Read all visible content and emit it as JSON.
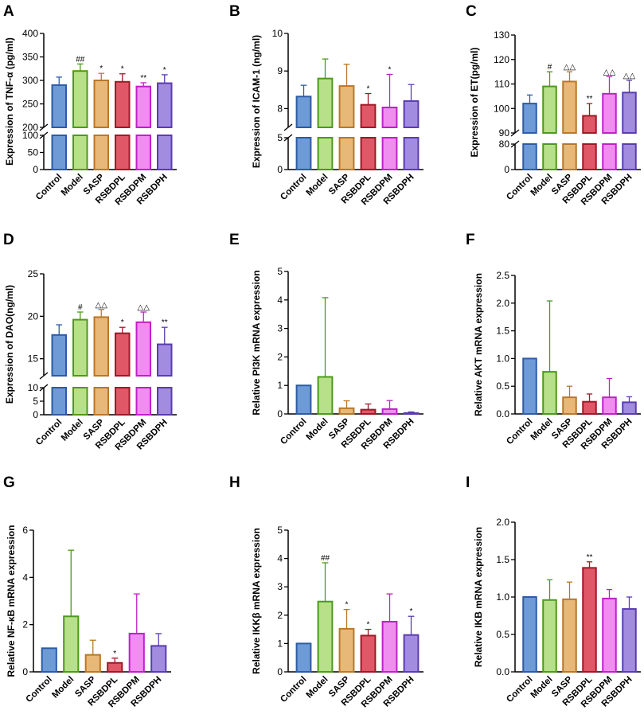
{
  "chart_data": [
    {
      "id": "A",
      "type": "bar",
      "ylabel": "Expression of TNF-α (pg/ml)",
      "categories": [
        "Control",
        "Model",
        "SASP",
        "RSBDPL",
        "RSBDPM",
        "RSBDPH"
      ],
      "values": [
        290,
        320,
        300,
        297,
        287,
        294
      ],
      "errors": [
        17,
        15,
        15,
        17,
        8,
        18
      ],
      "annotations": [
        "",
        "##",
        "*",
        "*",
        "**",
        "*"
      ],
      "axis_break": true,
      "lower_ticks": [
        0,
        50,
        100
      ],
      "lower_range": [
        0,
        100
      ],
      "upper_ticks": [
        200,
        250,
        300,
        350,
        400
      ],
      "upper_range": [
        200,
        400
      ]
    },
    {
      "id": "B",
      "type": "bar",
      "ylabel": "Expression of ICAM-1 (ng/ml)",
      "categories": [
        "Control",
        "Model",
        "SASP",
        "RSBDPL",
        "RSBDPM",
        "RSBDPH"
      ],
      "values": [
        8.32,
        8.8,
        8.6,
        8.1,
        8.03,
        8.2
      ],
      "errors": [
        0.3,
        0.52,
        0.58,
        0.3,
        0.88,
        0.44
      ],
      "annotations": [
        "",
        "",
        "",
        "*",
        "*",
        ""
      ],
      "axis_break": true,
      "lower_ticks": [
        0,
        5
      ],
      "lower_range": [
        0,
        5
      ],
      "upper_ticks": [
        8,
        9,
        10
      ],
      "upper_range": [
        7.5,
        10
      ]
    },
    {
      "id": "C",
      "type": "bar",
      "ylabel": "Expression of ET(pg/ml)",
      "categories": [
        "Control",
        "Model",
        "SASP",
        "RSBDPL",
        "RSBDPM",
        "RSBDPH"
      ],
      "values": [
        102,
        109,
        111,
        97,
        106,
        106.5
      ],
      "errors": [
        3.5,
        6,
        4,
        5,
        7,
        5
      ],
      "annotations": [
        "",
        "#",
        "△△",
        "**",
        "△△",
        "△△"
      ],
      "axis_break": true,
      "lower_ticks": [
        0,
        80
      ],
      "lower_range": [
        0,
        80
      ],
      "upper_ticks": [
        90,
        100,
        110,
        120,
        130
      ],
      "upper_range": [
        90,
        130
      ]
    },
    {
      "id": "D",
      "type": "bar",
      "ylabel": "Expression of DAO(ng/ml)",
      "categories": [
        "Control",
        "Model",
        "SASP",
        "RSBDPL",
        "RSBDPM",
        "RSBDPH"
      ],
      "values": [
        17.8,
        19.6,
        19.9,
        18.0,
        19.3,
        16.7
      ],
      "errors": [
        1.2,
        0.9,
        0.9,
        0.7,
        1.2,
        2.0
      ],
      "annotations": [
        "",
        "#",
        "△△",
        "*",
        "△△",
        "**"
      ],
      "axis_break": true,
      "lower_ticks": [
        0,
        5,
        10
      ],
      "lower_range": [
        0,
        10
      ],
      "upper_ticks": [
        15,
        20,
        25
      ],
      "upper_range": [
        13,
        25
      ]
    },
    {
      "id": "E",
      "type": "bar",
      "ylabel": "Relative PI3K mRNA expression",
      "categories": [
        "Control",
        "Model",
        "SASP",
        "RSBDPL",
        "RSBDPM",
        "RSBDPH"
      ],
      "values": [
        1.0,
        1.3,
        0.2,
        0.15,
        0.17,
        0.03
      ],
      "errors": [
        0,
        2.78,
        0.26,
        0.2,
        0.3,
        0.04
      ],
      "annotations": [
        "",
        "",
        "",
        "",
        "",
        ""
      ],
      "axis_break": false,
      "ticks": [
        0,
        1,
        2,
        3,
        4,
        5
      ],
      "ylim": [
        0,
        5
      ]
    },
    {
      "id": "F",
      "type": "bar",
      "ylabel": "Relative AKT mRNA expression",
      "categories": [
        "Control",
        "Model",
        "SASP",
        "RSBDPL",
        "RSBDPM",
        "RSBDPH"
      ],
      "values": [
        1.0,
        0.76,
        0.3,
        0.22,
        0.3,
        0.21
      ],
      "errors": [
        0,
        1.28,
        0.2,
        0.14,
        0.34,
        0.1
      ],
      "annotations": [
        "",
        "",
        "",
        "",
        "",
        ""
      ],
      "axis_break": false,
      "ticks": [
        0.0,
        0.5,
        1.0,
        1.5,
        2.0,
        2.5
      ],
      "ylim": [
        0,
        2.5
      ]
    },
    {
      "id": "G",
      "type": "bar",
      "ylabel": "Relative NF-κB mRNA expression",
      "categories": [
        "Control",
        "Model",
        "SASP",
        "RSBDPL",
        "RSBDPM",
        "RSBDPH"
      ],
      "values": [
        1.0,
        2.35,
        0.72,
        0.38,
        1.62,
        1.1
      ],
      "errors": [
        0,
        2.8,
        0.62,
        0.2,
        1.68,
        0.52
      ],
      "annotations": [
        "",
        "",
        "",
        "*",
        "",
        ""
      ],
      "axis_break": false,
      "ticks": [
        0,
        2,
        4,
        6
      ],
      "ylim": [
        0,
        6
      ]
    },
    {
      "id": "H",
      "type": "bar",
      "ylabel": "Relative IKKβ mRNA expression",
      "categories": [
        "Control",
        "Model",
        "SASP",
        "RSBDPL",
        "RSBDPM",
        "RSBDPH"
      ],
      "values": [
        1.0,
        2.48,
        1.52,
        1.28,
        1.77,
        1.3
      ],
      "errors": [
        0,
        1.37,
        0.68,
        0.22,
        0.98,
        0.66
      ],
      "annotations": [
        "",
        "##",
        "*",
        "*",
        "",
        "*"
      ],
      "axis_break": false,
      "ticks": [
        0,
        1,
        2,
        3,
        4,
        5
      ],
      "ylim": [
        0,
        5
      ]
    },
    {
      "id": "I",
      "type": "bar",
      "ylabel": "Relative IKB mRNA expression",
      "categories": [
        "Control",
        "Model",
        "SASP",
        "RSBDPL",
        "RSBDPM",
        "RSBDPH"
      ],
      "values": [
        1.0,
        0.96,
        0.97,
        1.39,
        0.98,
        0.84
      ],
      "errors": [
        0,
        0.27,
        0.23,
        0.08,
        0.12,
        0.16
      ],
      "annotations": [
        "",
        "",
        "",
        "**",
        "",
        ""
      ],
      "axis_break": false,
      "ticks": [
        0.0,
        0.5,
        1.0,
        1.5,
        2.0
      ],
      "ylim": [
        0,
        2
      ]
    }
  ],
  "colors": {
    "fills": [
      "#6e9bd6",
      "#b8e08a",
      "#e8b878",
      "#e05868",
      "#f08ef0",
      "#a28ce0"
    ],
    "edges": [
      "#2d5ba6",
      "#4c9a1c",
      "#b8782a",
      "#a01828",
      "#c020c8",
      "#5a3cb0"
    ]
  }
}
